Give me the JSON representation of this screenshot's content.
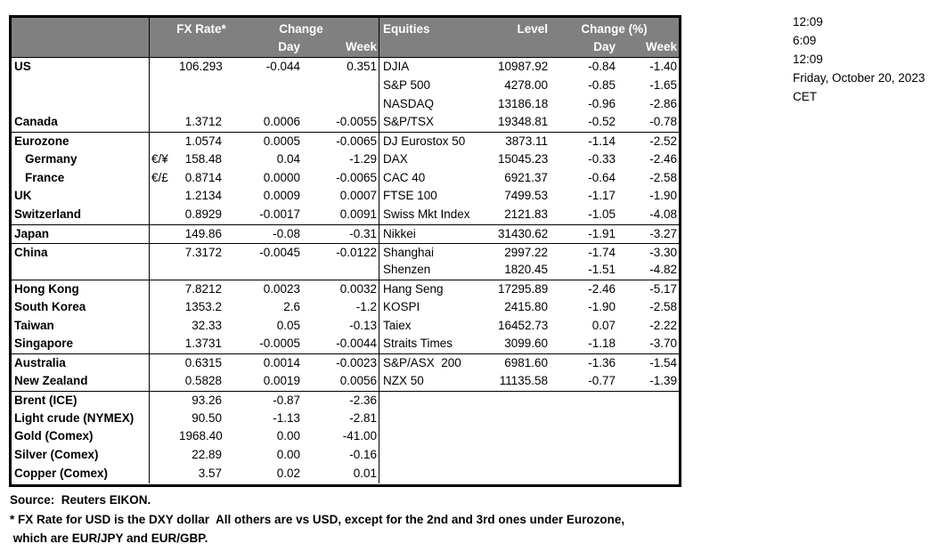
{
  "colors": {
    "header_bg": "#808080",
    "header_text": "#ffffff",
    "border": "#000000",
    "background": "#ffffff"
  },
  "table": {
    "header": {
      "fx_rate_label": "FX Rate*",
      "change_label": "Change",
      "day_label": "Day",
      "week_label": "Week",
      "equities_label": "Equities",
      "level_label": "Level",
      "change_pct_label": "Change (%)"
    },
    "rows": [
      {
        "sep": false,
        "fx": {
          "name": "US",
          "indent": false,
          "pair": "",
          "rate": "106.293",
          "day": "-0.044",
          "week": "0.351"
        },
        "eq": {
          "name": "DJIA",
          "level": "10987.92",
          "day": "-0.84",
          "week": "-1.40"
        }
      },
      {
        "sep": false,
        "fx": {
          "name": "",
          "indent": false,
          "pair": "",
          "rate": "",
          "day": "",
          "week": ""
        },
        "eq": {
          "name": "S&P 500",
          "level": "4278.00",
          "day": "-0.85",
          "week": "-1.65"
        }
      },
      {
        "sep": false,
        "fx": {
          "name": "",
          "indent": false,
          "pair": "",
          "rate": "",
          "day": "",
          "week": ""
        },
        "eq": {
          "name": "NASDAQ",
          "level": "13186.18",
          "day": "-0.96",
          "week": "-2.86"
        }
      },
      {
        "sep": false,
        "fx": {
          "name": "Canada",
          "indent": false,
          "pair": "",
          "rate": "1.3712",
          "day": "0.0006",
          "week": "-0.0055"
        },
        "eq": {
          "name": "S&P/TSX",
          "level": "19348.81",
          "day": "-0.52",
          "week": "-0.78"
        }
      },
      {
        "sep": true,
        "fx": {
          "name": "Eurozone",
          "indent": false,
          "pair": "",
          "rate": "1.0574",
          "day": "0.0005",
          "week": "-0.0065"
        },
        "eq": {
          "name": "DJ Eurostox 50",
          "level": "3873.11",
          "day": "-1.14",
          "week": "-2.52"
        }
      },
      {
        "sep": false,
        "fx": {
          "name": "Germany",
          "indent": true,
          "pair": "€/¥",
          "rate": "158.48",
          "day": "0.04",
          "week": "-1.29"
        },
        "eq": {
          "name": "DAX",
          "level": "15045.23",
          "day": "-0.33",
          "week": "-2.46"
        }
      },
      {
        "sep": false,
        "fx": {
          "name": "France",
          "indent": true,
          "pair": "€/£",
          "rate": "0.8714",
          "day": "0.0000",
          "week": "-0.0065"
        },
        "eq": {
          "name": "CAC 40",
          "level": "6921.37",
          "day": "-0.64",
          "week": "-2.58"
        }
      },
      {
        "sep": false,
        "fx": {
          "name": "UK",
          "indent": false,
          "pair": "",
          "rate": "1.2134",
          "day": "0.0009",
          "week": "0.0007"
        },
        "eq": {
          "name": "FTSE 100",
          "level": "7499.53",
          "day": "-1.17",
          "week": "-1.90"
        }
      },
      {
        "sep": false,
        "fx": {
          "name": "Switzerland",
          "indent": false,
          "pair": "",
          "rate": "0.8929",
          "day": "-0.0017",
          "week": "0.0091"
        },
        "eq": {
          "name": "Swiss Mkt Index",
          "level": "2121.83",
          "day": "-1.05",
          "week": "-4.08"
        }
      },
      {
        "sep": true,
        "fx": {
          "name": "Japan",
          "indent": false,
          "pair": "",
          "rate": "149.86",
          "day": "-0.08",
          "week": "-0.31"
        },
        "eq": {
          "name": "Nikkei",
          "level": "31430.62",
          "day": "-1.91",
          "week": "-3.27"
        }
      },
      {
        "sep": true,
        "fx": {
          "name": "China",
          "indent": false,
          "pair": "",
          "rate": "7.3172",
          "day": "-0.0045",
          "week": "-0.0122"
        },
        "eq": {
          "name": "Shanghai",
          "level": "2997.22",
          "day": "-1.74",
          "week": "-3.30"
        }
      },
      {
        "sep": false,
        "fx": {
          "name": "",
          "indent": false,
          "pair": "",
          "rate": "",
          "day": "",
          "week": ""
        },
        "eq": {
          "name": "Shenzen",
          "level": "1820.45",
          "day": "-1.51",
          "week": "-4.82"
        }
      },
      {
        "sep": true,
        "fx": {
          "name": "Hong Kong",
          "indent": false,
          "pair": "",
          "rate": "7.8212",
          "day": "0.0023",
          "week": "0.0032"
        },
        "eq": {
          "name": "Hang Seng",
          "level": "17295.89",
          "day": "-2.46",
          "week": "-5.17"
        }
      },
      {
        "sep": false,
        "fx": {
          "name": "South Korea",
          "indent": false,
          "pair": "",
          "rate": "1353.2",
          "day": "2.6",
          "week": "-1.2"
        },
        "eq": {
          "name": "KOSPI",
          "level": "2415.80",
          "day": "-1.90",
          "week": "-2.58"
        }
      },
      {
        "sep": false,
        "fx": {
          "name": "Taiwan",
          "indent": false,
          "pair": "",
          "rate": "32.33",
          "day": "0.05",
          "week": "-0.13"
        },
        "eq": {
          "name": "Taiex",
          "level": "16452.73",
          "day": "0.07",
          "week": "-2.22"
        }
      },
      {
        "sep": false,
        "fx": {
          "name": "Singapore",
          "indent": false,
          "pair": "",
          "rate": "1.3731",
          "day": "-0.0005",
          "week": "-0.0044"
        },
        "eq": {
          "name": "Straits Times",
          "level": "3099.60",
          "day": "-1.18",
          "week": "-3.70"
        }
      },
      {
        "sep": true,
        "fx": {
          "name": "Australia",
          "indent": false,
          "pair": "",
          "rate": "0.6315",
          "day": "0.0014",
          "week": "-0.0023"
        },
        "eq": {
          "name": "S&P/ASX  200",
          "level": "6981.60",
          "day": "-1.36",
          "week": "-1.54"
        }
      },
      {
        "sep": false,
        "fx": {
          "name": "New Zealand",
          "indent": false,
          "pair": "",
          "rate": "0.5828",
          "day": "0.0019",
          "week": "0.0056"
        },
        "eq": {
          "name": "NZX 50",
          "level": "11135.58",
          "day": "-0.77",
          "week": "-1.39"
        }
      },
      {
        "sep": true,
        "fx": {
          "name": "Brent (ICE)",
          "indent": false,
          "pair": "",
          "rate": "93.26",
          "day": "-0.87",
          "week": "-2.36"
        },
        "eq": {
          "name": "",
          "level": "",
          "day": "",
          "week": ""
        }
      },
      {
        "sep": false,
        "fx": {
          "name": "Light crude (NYMEX)",
          "indent": false,
          "pair": "",
          "rate": "90.50",
          "day": "-1.13",
          "week": "-2.81"
        },
        "eq": {
          "name": "",
          "level": "",
          "day": "",
          "week": ""
        }
      },
      {
        "sep": false,
        "fx": {
          "name": "Gold (Comex)",
          "indent": false,
          "pair": "",
          "rate": "1968.40",
          "day": "0.00",
          "week": "-41.00"
        },
        "eq": {
          "name": "",
          "level": "",
          "day": "",
          "week": ""
        }
      },
      {
        "sep": false,
        "fx": {
          "name": "Silver (Comex)",
          "indent": false,
          "pair": "",
          "rate": "22.89",
          "day": "0.00",
          "week": "-0.16"
        },
        "eq": {
          "name": "",
          "level": "",
          "day": "",
          "week": ""
        }
      },
      {
        "sep": false,
        "fx": {
          "name": "Copper (Comex)",
          "indent": false,
          "pair": "",
          "rate": "3.57",
          "day": "0.02",
          "week": "0.01"
        },
        "eq": {
          "name": "",
          "level": "",
          "day": "",
          "week": ""
        }
      }
    ]
  },
  "timestamps": [
    "12:09",
    "6:09",
    "12:09",
    "Friday, October 20, 2023",
    "CET"
  ],
  "footnotes": [
    "Source:  Reuters EIKON.",
    "* FX Rate for USD is the DXY dollar  All others are vs USD, except for the 2nd and 3rd ones under Eurozone,",
    " which are EUR/JPY and EUR/GBP."
  ]
}
